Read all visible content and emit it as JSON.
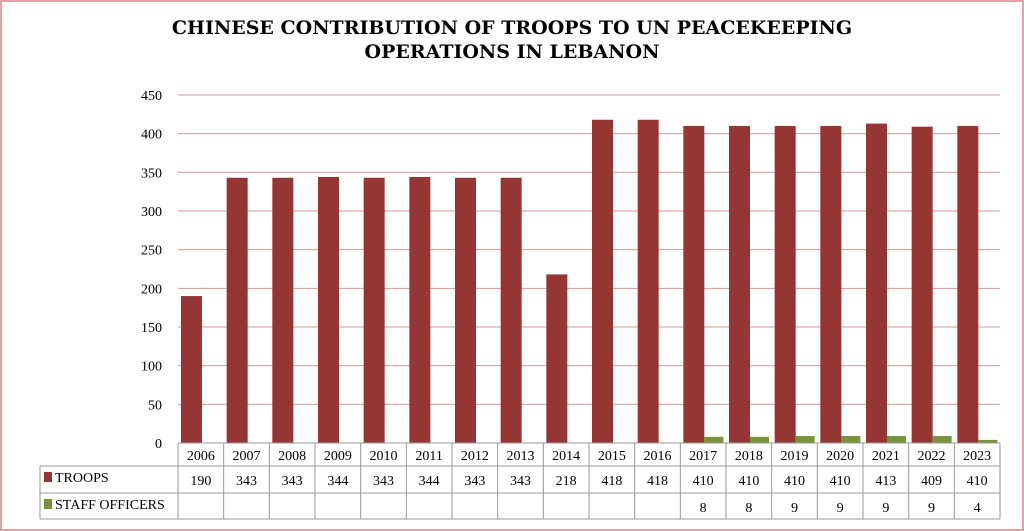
{
  "chart_data": {
    "type": "bar",
    "title_lines": [
      "CHINESE CONTRIBUTION OF TROOPS TO UN PEACEKEEPING",
      "OPERATIONS IN LEBANON"
    ],
    "categories": [
      "2006",
      "2007",
      "2008",
      "2009",
      "2010",
      "2011",
      "2012",
      "2013",
      "2014",
      "2015",
      "2016",
      "2017",
      "2018",
      "2019",
      "2020",
      "2021",
      "2022",
      "2023"
    ],
    "series": [
      {
        "name": "TROOPS",
        "color": "#963634",
        "values": [
          190,
          343,
          343,
          344,
          343,
          344,
          343,
          343,
          218,
          418,
          418,
          410,
          410,
          410,
          410,
          413,
          409,
          410
        ]
      },
      {
        "name": "STAFF OFFICERS",
        "color": "#77933c",
        "values": [
          null,
          null,
          null,
          null,
          null,
          null,
          null,
          null,
          null,
          null,
          null,
          8,
          8,
          9,
          9,
          9,
          9,
          4
        ]
      }
    ],
    "ylim": [
      0,
      450
    ],
    "yticks": [
      0,
      50,
      100,
      150,
      200,
      250,
      300,
      350,
      400,
      450
    ],
    "grid": true,
    "gridline_color": "#d99694",
    "legend": "data-table",
    "xlabel": "",
    "ylabel": ""
  }
}
